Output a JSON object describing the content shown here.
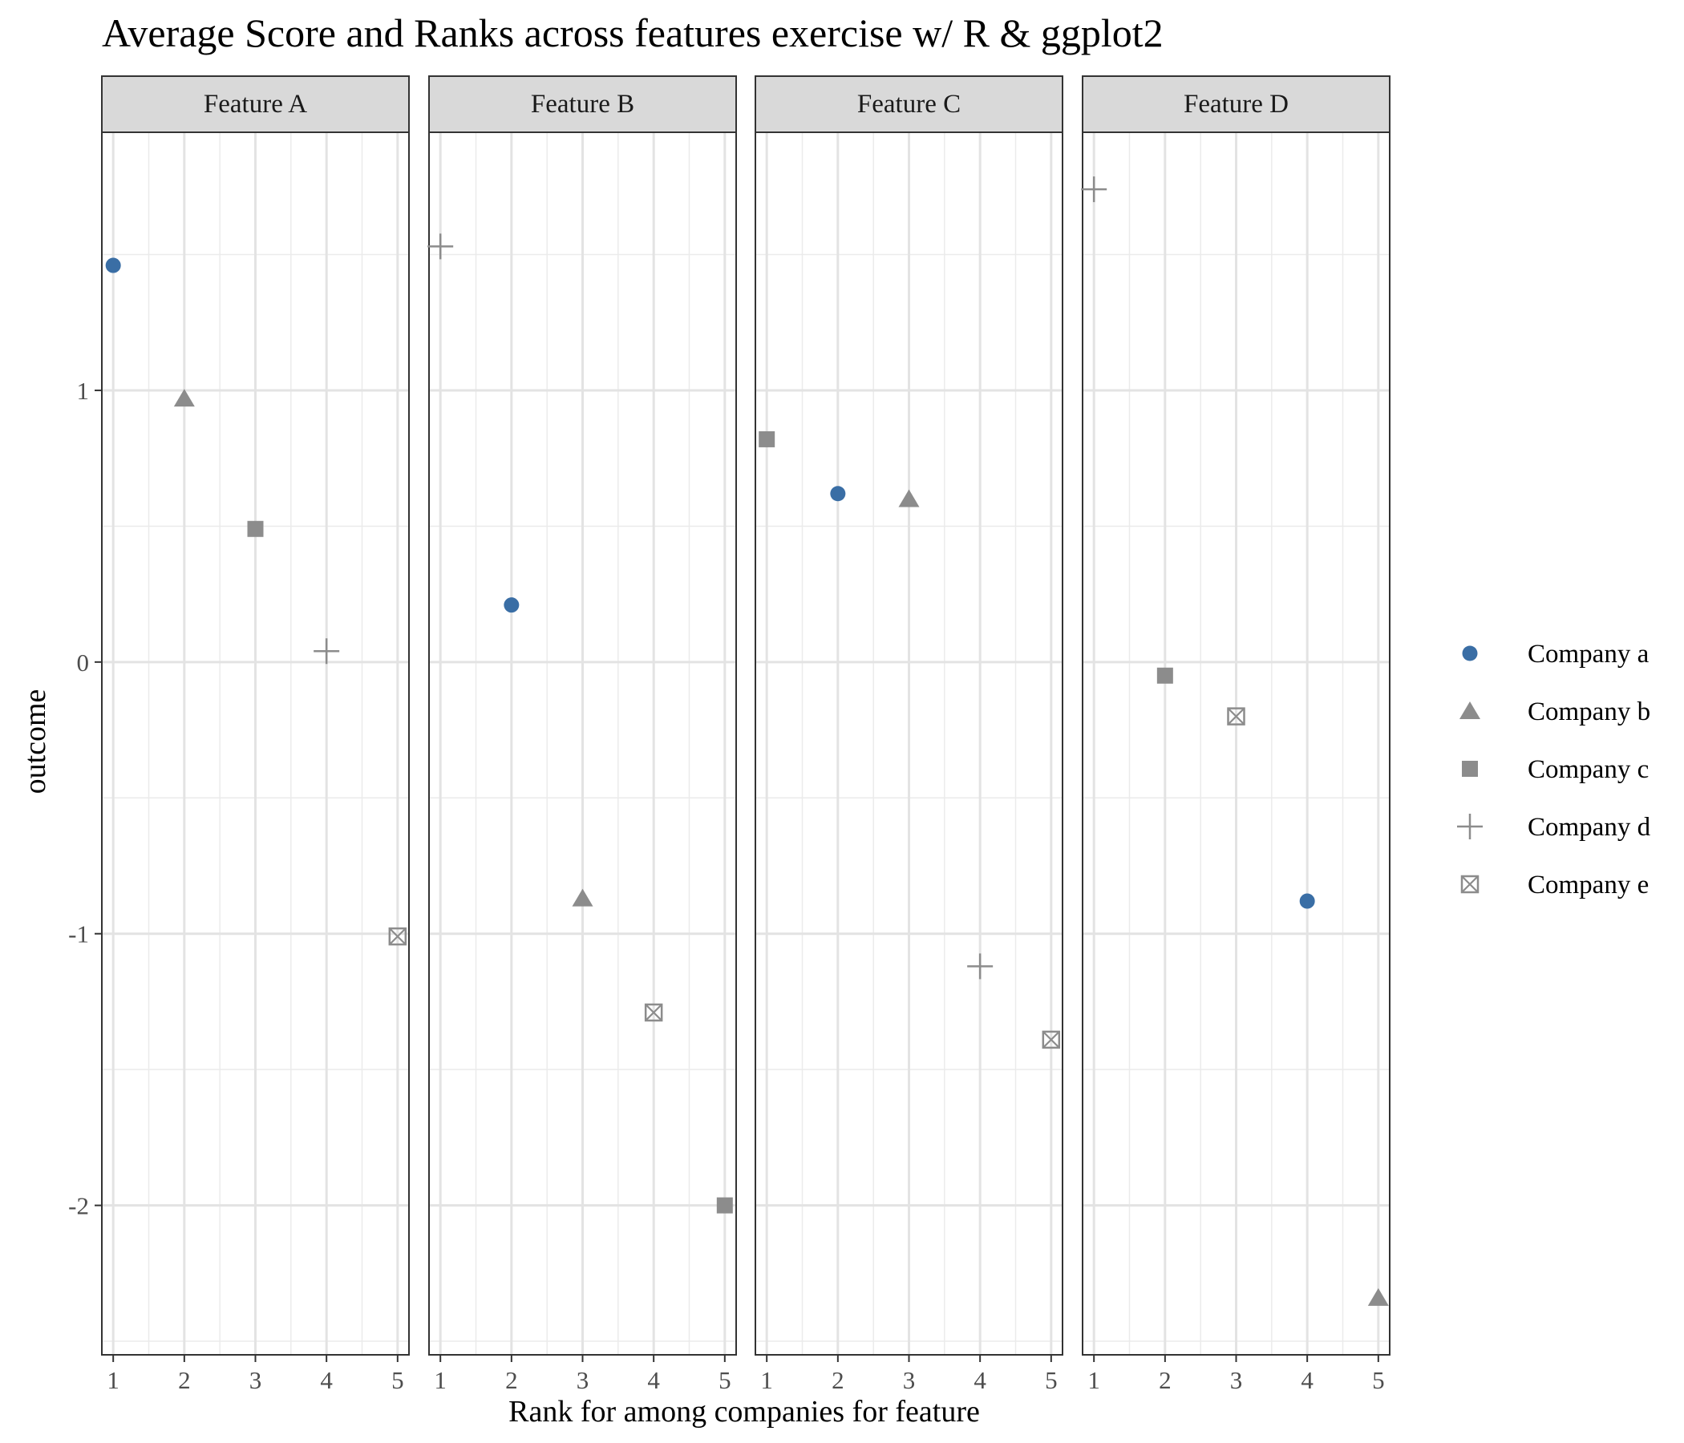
{
  "chart_data": {
    "type": "scatter",
    "title": "Average Score and Ranks across features exercise w/ R & ggplot2",
    "xlabel": "Rank for among companies for feature",
    "ylabel": "outcome",
    "facets": [
      "Feature A",
      "Feature B",
      "Feature C",
      "Feature D"
    ],
    "x_ticks": [
      "1",
      "2",
      "3",
      "4",
      "5"
    ],
    "y_ticks": [
      "-2",
      "-1",
      "0",
      "1"
    ],
    "xlim": [
      0.84,
      5.16
    ],
    "ylim": [
      -2.55,
      1.95
    ],
    "grid": true,
    "legend_position": "right",
    "series": [
      {
        "name": "Company a",
        "shape": "circle",
        "color": "#3A6EA5",
        "points": [
          {
            "facet": "Feature A",
            "x": 1,
            "y": 1.46
          },
          {
            "facet": "Feature B",
            "x": 2,
            "y": 0.21
          },
          {
            "facet": "Feature C",
            "x": 2,
            "y": 0.62
          },
          {
            "facet": "Feature D",
            "x": 4,
            "y": -0.88
          }
        ]
      },
      {
        "name": "Company b",
        "shape": "triangle",
        "color": "#8C8C8C",
        "points": [
          {
            "facet": "Feature A",
            "x": 2,
            "y": 0.97
          },
          {
            "facet": "Feature B",
            "x": 3,
            "y": -0.87
          },
          {
            "facet": "Feature C",
            "x": 3,
            "y": 0.6
          },
          {
            "facet": "Feature D",
            "x": 5,
            "y": -2.34
          }
        ]
      },
      {
        "name": "Company c",
        "shape": "square",
        "color": "#8C8C8C",
        "points": [
          {
            "facet": "Feature A",
            "x": 3,
            "y": 0.49
          },
          {
            "facet": "Feature B",
            "x": 5,
            "y": -2.0
          },
          {
            "facet": "Feature C",
            "x": 1,
            "y": 0.82
          },
          {
            "facet": "Feature D",
            "x": 2,
            "y": -0.05
          }
        ]
      },
      {
        "name": "Company d",
        "shape": "plus",
        "color": "#8C8C8C",
        "points": [
          {
            "facet": "Feature A",
            "x": 4,
            "y": 0.04
          },
          {
            "facet": "Feature B",
            "x": 1,
            "y": 1.53
          },
          {
            "facet": "Feature C",
            "x": 4,
            "y": -1.12
          },
          {
            "facet": "Feature D",
            "x": 1,
            "y": 1.74
          }
        ]
      },
      {
        "name": "Company e",
        "shape": "square-cross",
        "color": "#8C8C8C",
        "points": [
          {
            "facet": "Feature A",
            "x": 5,
            "y": -1.01
          },
          {
            "facet": "Feature B",
            "x": 4,
            "y": -1.29
          },
          {
            "facet": "Feature C",
            "x": 5,
            "y": -1.39
          },
          {
            "facet": "Feature D",
            "x": 3,
            "y": -0.2
          }
        ]
      }
    ]
  }
}
